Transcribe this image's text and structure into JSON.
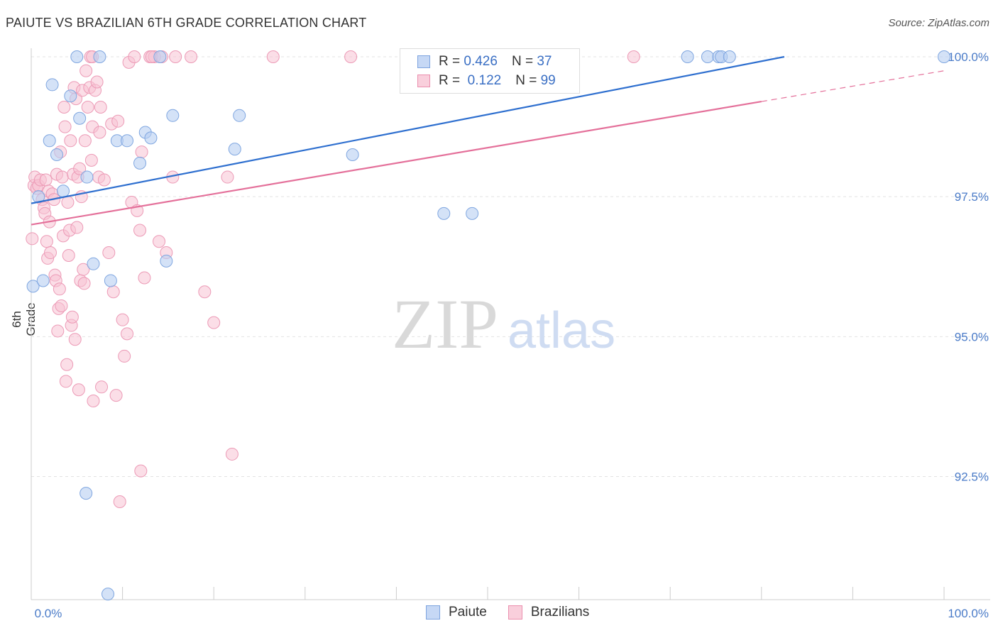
{
  "header": {
    "title": "PAIUTE VS BRAZILIAN 6TH GRADE CORRELATION CHART",
    "source": "Source: ZipAtlas.com"
  },
  "watermark": {
    "zip": "ZIP",
    "atlas": "atlas"
  },
  "legend": {
    "paiute": {
      "r_label": "R =",
      "r_value": "0.426",
      "n_label": "N =",
      "n_value": "37",
      "color": "#a9c4ef"
    },
    "brazilians": {
      "r_label": "R =",
      "r_value": "0.122",
      "n_label": "N =",
      "n_value": "99",
      "color": "#f4b3c8"
    }
  },
  "bottom_legend": {
    "paiute": "Paiute",
    "brazilians": "Brazilians"
  },
  "chart_data": {
    "type": "scatter",
    "title": "PAIUTE VS BRAZILIAN 6TH GRADE CORRELATION CHART",
    "xlabel": "",
    "ylabel": "6th Grade",
    "xlim": [
      0,
      100
    ],
    "ylim": [
      90.3,
      100.2
    ],
    "x_tick_labels": [
      "0.0%",
      "100.0%"
    ],
    "y_ticks": [
      92.5,
      95.0,
      97.5,
      100.0
    ],
    "y_tick_labels": [
      "92.5%",
      "95.0%",
      "97.5%",
      "100.0%"
    ],
    "grid": true,
    "series": [
      {
        "name": "Paiute",
        "color": "#a9c4ef",
        "line_color": "#2e6fcf",
        "trend": {
          "x": [
            0,
            82.5
          ],
          "y": [
            97.38,
            100.0
          ]
        },
        "points": [
          [
            0.2,
            95.9
          ],
          [
            1.3,
            96.0
          ],
          [
            0.8,
            97.5
          ],
          [
            2.0,
            98.5
          ],
          [
            2.3,
            99.5
          ],
          [
            2.8,
            98.25
          ],
          [
            3.5,
            97.6
          ],
          [
            4.3,
            99.3
          ],
          [
            5.3,
            98.9
          ],
          [
            5.0,
            100.0
          ],
          [
            6.1,
            97.85
          ],
          [
            7.5,
            100.0
          ],
          [
            6.8,
            96.3
          ],
          [
            8.7,
            96.0
          ],
          [
            9.4,
            98.5
          ],
          [
            10.5,
            98.5
          ],
          [
            11.9,
            98.1
          ],
          [
            12.5,
            98.65
          ],
          [
            13.1,
            98.55
          ],
          [
            14.1,
            100.0
          ],
          [
            14.8,
            96.35
          ],
          [
            15.5,
            98.95
          ],
          [
            6.0,
            92.2
          ],
          [
            8.4,
            90.4
          ],
          [
            22.3,
            98.35
          ],
          [
            22.8,
            98.95
          ],
          [
            35.2,
            98.25
          ],
          [
            45.7,
            100.0
          ],
          [
            46.2,
            100.0
          ],
          [
            45.2,
            97.2
          ],
          [
            48.3,
            97.2
          ],
          [
            71.9,
            100.0
          ],
          [
            74.1,
            100.0
          ],
          [
            75.3,
            100.0
          ],
          [
            75.6,
            100.0
          ],
          [
            76.5,
            100.0
          ],
          [
            100.0,
            100.0
          ]
        ]
      },
      {
        "name": "Brazilians",
        "color": "#f4b3c8",
        "line_color": "#e4709a",
        "trend": {
          "x": [
            0,
            80
          ],
          "y": [
            97.0,
            99.2
          ]
        },
        "trend_dashed": {
          "x": [
            80,
            100
          ],
          "y": [
            99.2,
            99.75
          ]
        },
        "points": [
          [
            0.1,
            96.75
          ],
          [
            0.3,
            97.7
          ],
          [
            0.4,
            97.85
          ],
          [
            0.6,
            97.65
          ],
          [
            0.8,
            97.7
          ],
          [
            1.0,
            97.8
          ],
          [
            1.2,
            97.45
          ],
          [
            1.4,
            97.3
          ],
          [
            1.5,
            97.2
          ],
          [
            1.6,
            97.8
          ],
          [
            1.7,
            96.7
          ],
          [
            1.8,
            96.4
          ],
          [
            1.9,
            97.6
          ],
          [
            2.0,
            97.05
          ],
          [
            2.1,
            96.5
          ],
          [
            2.3,
            97.55
          ],
          [
            2.5,
            97.45
          ],
          [
            2.6,
            96.1
          ],
          [
            2.7,
            96.0
          ],
          [
            2.8,
            97.9
          ],
          [
            2.9,
            95.1
          ],
          [
            3.0,
            95.5
          ],
          [
            3.1,
            95.85
          ],
          [
            3.2,
            98.3
          ],
          [
            3.3,
            95.55
          ],
          [
            3.4,
            97.85
          ],
          [
            3.5,
            96.8
          ],
          [
            3.6,
            99.1
          ],
          [
            3.7,
            98.75
          ],
          [
            3.8,
            94.2
          ],
          [
            3.9,
            94.5
          ],
          [
            4.0,
            97.4
          ],
          [
            4.1,
            96.45
          ],
          [
            4.2,
            96.9
          ],
          [
            4.3,
            98.5
          ],
          [
            4.4,
            95.2
          ],
          [
            4.5,
            95.35
          ],
          [
            4.6,
            97.9
          ],
          [
            4.7,
            99.45
          ],
          [
            4.8,
            94.95
          ],
          [
            4.9,
            99.25
          ],
          [
            5.0,
            96.95
          ],
          [
            5.1,
            97.85
          ],
          [
            5.2,
            94.05
          ],
          [
            5.3,
            98.0
          ],
          [
            5.4,
            96.0
          ],
          [
            5.5,
            97.5
          ],
          [
            5.6,
            99.4
          ],
          [
            5.7,
            96.2
          ],
          [
            5.8,
            95.95
          ],
          [
            5.9,
            98.5
          ],
          [
            6.0,
            99.75
          ],
          [
            6.2,
            99.1
          ],
          [
            6.4,
            99.45
          ],
          [
            6.6,
            98.15
          ],
          [
            6.7,
            98.75
          ],
          [
            6.8,
            93.85
          ],
          [
            7.0,
            99.4
          ],
          [
            7.2,
            99.55
          ],
          [
            7.4,
            97.85
          ],
          [
            7.6,
            99.1
          ],
          [
            7.5,
            98.65
          ],
          [
            7.7,
            94.1
          ],
          [
            8.0,
            97.8
          ],
          [
            8.5,
            96.5
          ],
          [
            8.8,
            98.8
          ],
          [
            9.0,
            95.8
          ],
          [
            9.3,
            93.95
          ],
          [
            9.5,
            98.85
          ],
          [
            9.7,
            92.05
          ],
          [
            10.0,
            95.3
          ],
          [
            10.2,
            94.65
          ],
          [
            10.5,
            95.05
          ],
          [
            10.7,
            99.9
          ],
          [
            11.0,
            97.4
          ],
          [
            11.3,
            100.0
          ],
          [
            11.6,
            97.25
          ],
          [
            11.9,
            96.9
          ],
          [
            12.1,
            98.3
          ],
          [
            12.4,
            96.05
          ],
          [
            12.0,
            92.6
          ],
          [
            13.0,
            100.0
          ],
          [
            13.5,
            100.0
          ],
          [
            14.0,
            96.7
          ],
          [
            14.8,
            96.5
          ],
          [
            15.5,
            97.85
          ],
          [
            15.8,
            100.0
          ],
          [
            17.5,
            100.0
          ],
          [
            19.0,
            95.8
          ],
          [
            20.0,
            95.25
          ],
          [
            21.5,
            97.85
          ],
          [
            22.0,
            92.9
          ],
          [
            26.5,
            100.0
          ],
          [
            35.0,
            100.0
          ],
          [
            66.0,
            100.0
          ],
          [
            6.5,
            100.0
          ],
          [
            6.7,
            100.0
          ],
          [
            13.2,
            100.0
          ],
          [
            14.3,
            100.0
          ]
        ]
      }
    ]
  }
}
